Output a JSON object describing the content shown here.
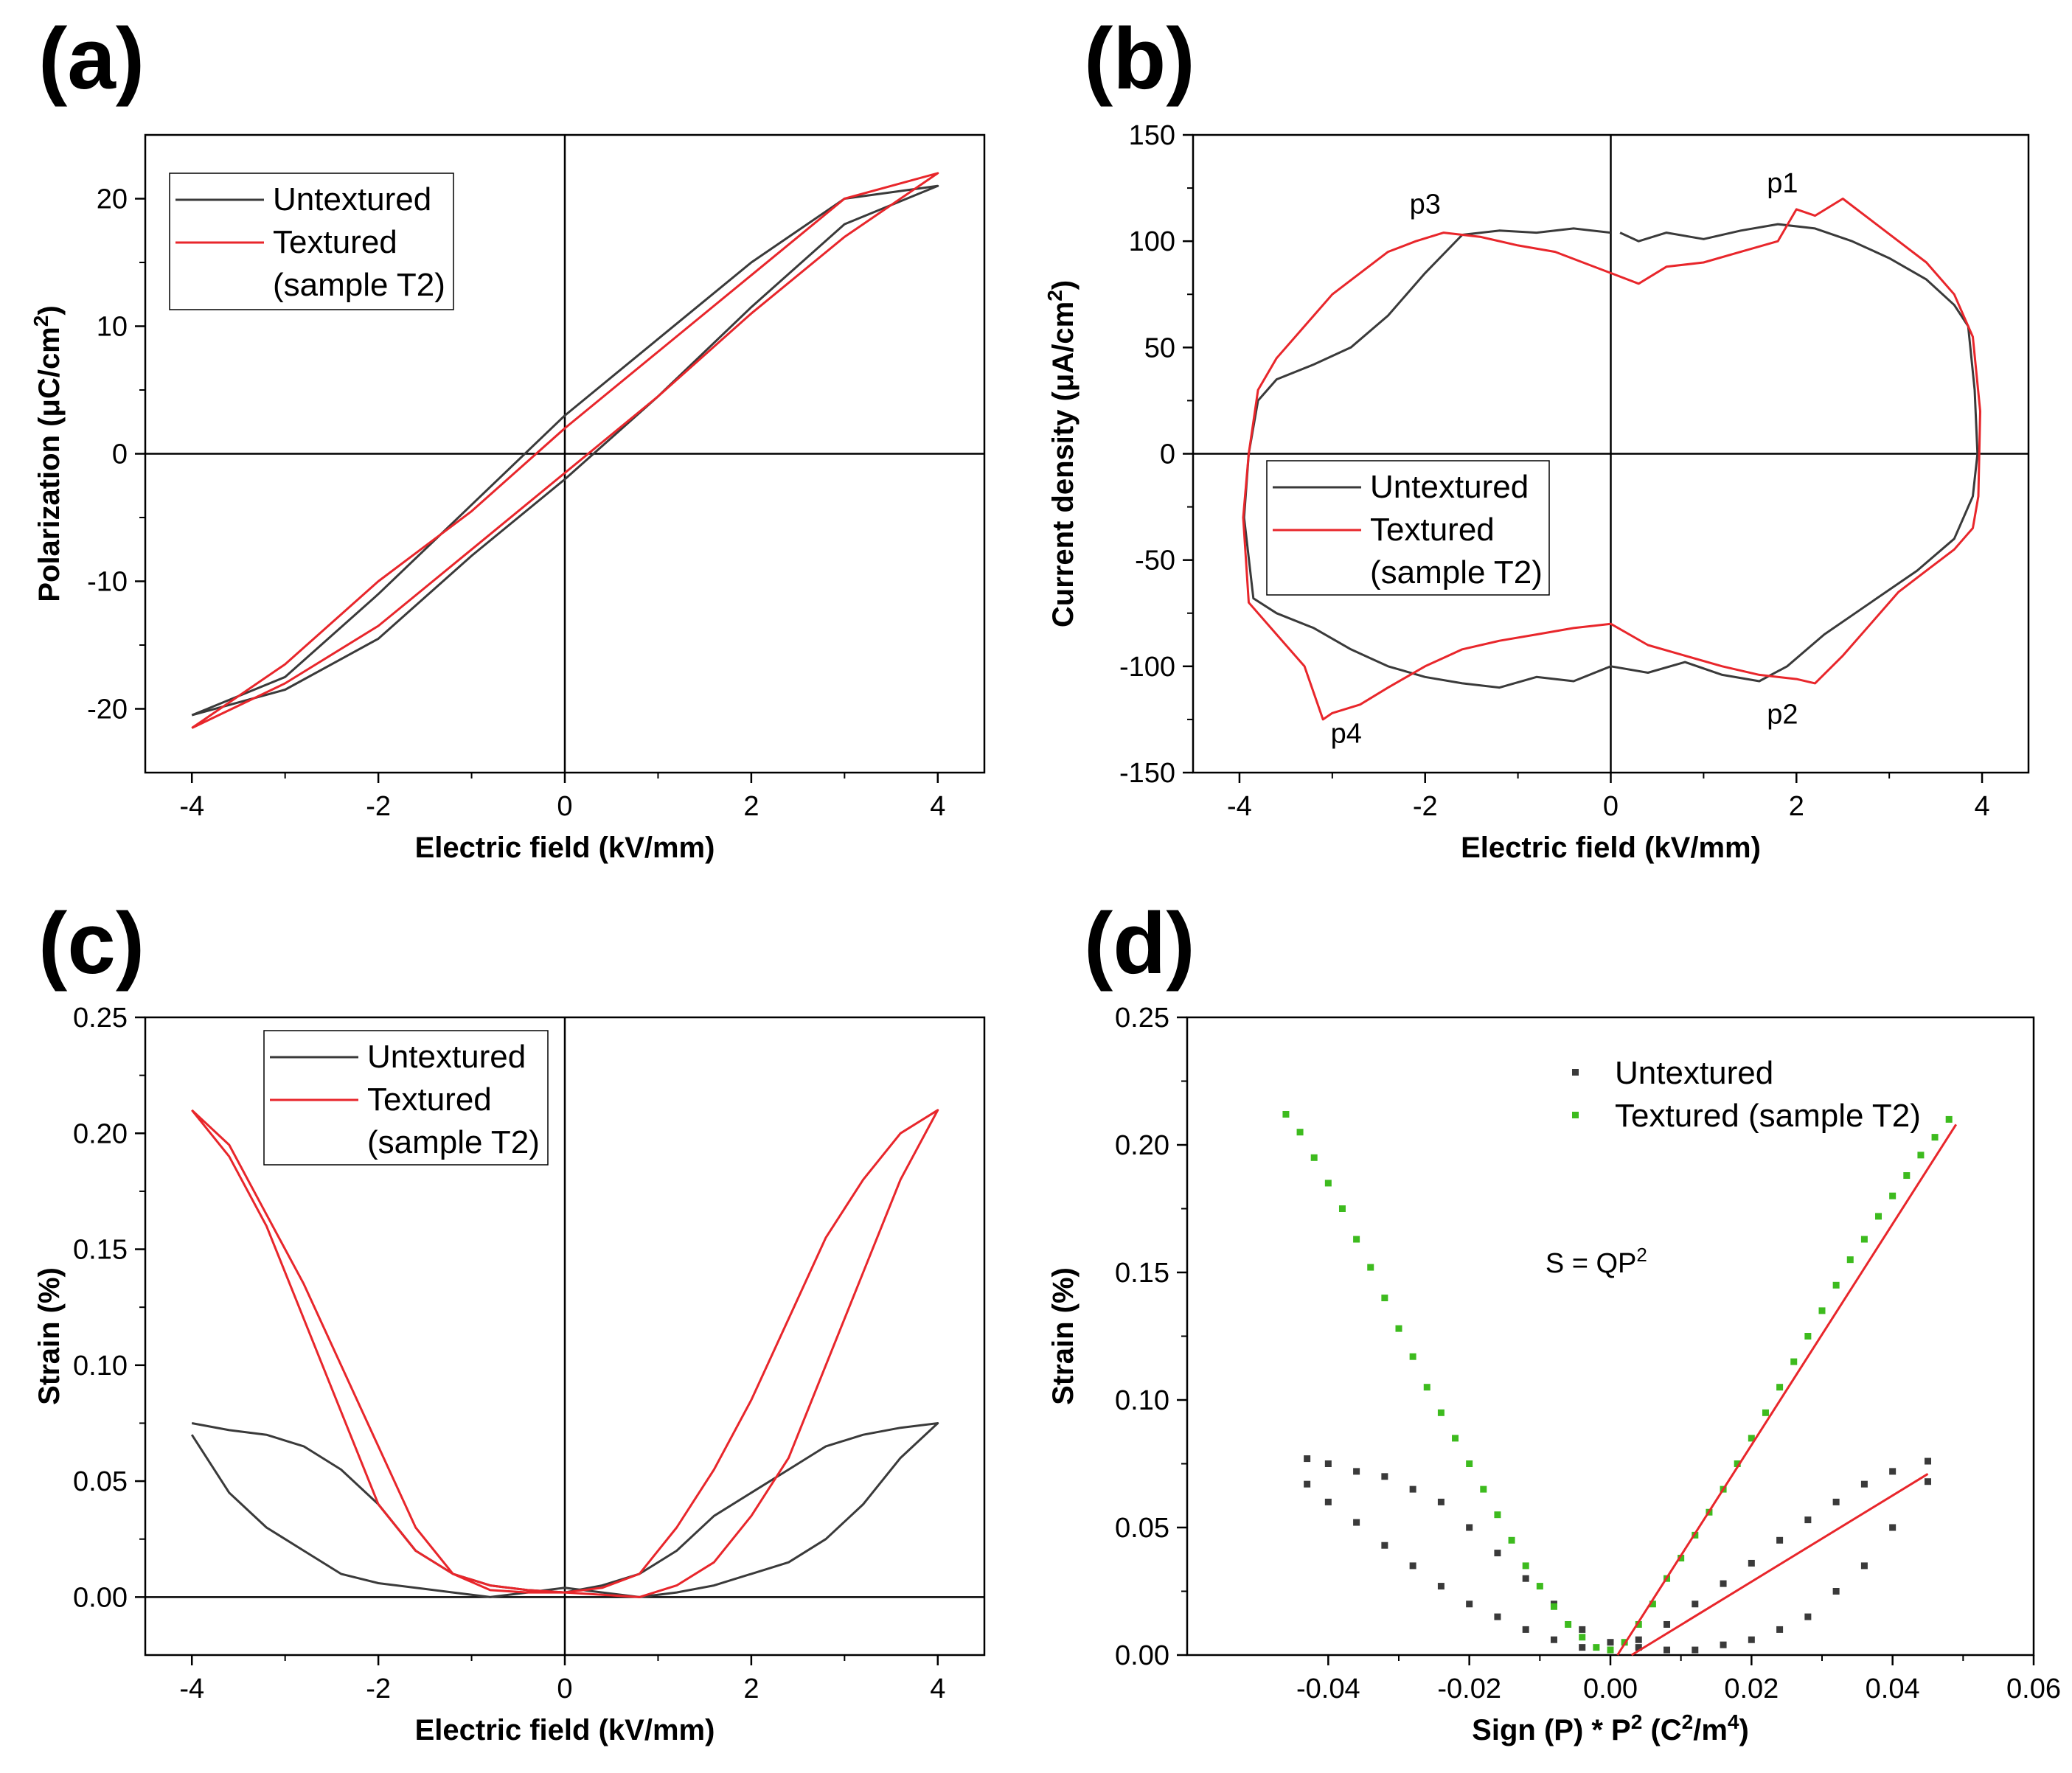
{
  "colors": {
    "untextured": "#3a3a3a",
    "textured": "#e8262b",
    "textured_scatter": "#3dbb1e",
    "fit_line": "#e8262b"
  },
  "chart_data": [
    {
      "id": "a",
      "panel": "(a)",
      "type": "line",
      "xlabel": "Electric field (kV/mm)",
      "ylabel_main": "Polarization (",
      "ylabel_unit": "μC/cm",
      "ylabel_sup": "2",
      "ylabel_close": ")",
      "xlim": [
        -4.5,
        4.5
      ],
      "ylim": [
        -25,
        25
      ],
      "xticks": [
        -4,
        -2,
        0,
        2,
        4
      ],
      "yticks": [
        -20,
        -10,
        0,
        10,
        20
      ],
      "tick_labels_x": [
        "-4",
        "-2",
        "0",
        "2",
        "4"
      ],
      "tick_labels_y": [
        "-20",
        "-10",
        "0",
        "10",
        "20"
      ],
      "legend": [
        {
          "label": "Untextured",
          "series": 0
        },
        {
          "label": "Textured",
          "series": 1
        },
        {
          "label": "(sample T2)",
          "series": -1
        }
      ],
      "series": [
        {
          "name": "Untextured",
          "x": [
            -4,
            -3,
            -2,
            -1,
            0,
            1,
            2,
            3,
            4,
            3,
            2,
            1,
            0,
            -1,
            -2,
            -3,
            -4
          ],
          "y": [
            -20.5,
            -18.5,
            -14.5,
            -8,
            -2,
            4.5,
            11.5,
            18,
            21,
            20,
            15,
            9,
            3,
            -4,
            -11,
            -17.5,
            -20.5
          ]
        },
        {
          "name": "Textured",
          "x": [
            -4,
            -3,
            -2,
            -1,
            0,
            1,
            2,
            3,
            4,
            3,
            2,
            1,
            0,
            -1,
            -2,
            -3,
            -4
          ],
          "y": [
            -21.5,
            -18,
            -13.5,
            -7.5,
            -1.5,
            4.5,
            11,
            17,
            22,
            20,
            14,
            8,
            2,
            -4.5,
            -10,
            -16.5,
            -21.5
          ]
        }
      ]
    },
    {
      "id": "b",
      "panel": "(b)",
      "type": "line",
      "xlabel": "Electric field (kV/mm)",
      "ylabel_main": "Current density (",
      "ylabel_unit": "μA/cm",
      "ylabel_sup": "2",
      "ylabel_close": ")",
      "xlim": [
        -4.5,
        4.5
      ],
      "ylim": [
        -150,
        150
      ],
      "xticks": [
        -4,
        -2,
        0,
        2,
        4
      ],
      "yticks": [
        -150,
        -100,
        -50,
        0,
        50,
        100,
        150
      ],
      "tick_labels_x": [
        "-4",
        "-2",
        "0",
        "2",
        "4"
      ],
      "tick_labels_y": [
        "-150",
        "-100",
        "-50",
        "0",
        "50",
        "100",
        "150"
      ],
      "legend": [
        {
          "label": "Untextured",
          "series": 0
        },
        {
          "label": "Textured",
          "series": 1
        },
        {
          "label": "(sample T2)",
          "series": -1
        }
      ],
      "annotations": [
        {
          "text": "p1",
          "x": 1.85,
          "y": 123
        },
        {
          "text": "p2",
          "x": 1.85,
          "y": -127
        },
        {
          "text": "p3",
          "x": -2.0,
          "y": 113
        },
        {
          "text": "p4",
          "x": -2.85,
          "y": -136
        }
      ],
      "series": [
        {
          "name": "Untextured",
          "x": [
            0.1,
            0.3,
            0.6,
            1.0,
            1.4,
            1.8,
            2.2,
            2.6,
            3.0,
            3.4,
            3.7,
            3.85,
            3.92,
            3.95,
            3.9,
            3.7,
            3.3,
            2.8,
            2.3,
            1.9,
            1.6,
            1.2,
            0.8,
            0.4,
            0.0,
            -0.4,
            -0.8,
            -1.2,
            -1.6,
            -2.0,
            -2.4,
            -2.8,
            -3.2,
            -3.6,
            -3.85,
            -3.95,
            -3.9,
            -3.8,
            -3.6,
            -3.2,
            -2.8,
            -2.4,
            -2.0,
            -1.6,
            -1.2,
            -0.8,
            -0.4,
            0.0
          ],
          "y": [
            104,
            100,
            104,
            101,
            105,
            108,
            106,
            100,
            92,
            82,
            70,
            60,
            30,
            0,
            -20,
            -40,
            -55,
            -70,
            -85,
            -100,
            -107,
            -104,
            -98,
            -103,
            -100,
            -107,
            -105,
            -110,
            -108,
            -105,
            -100,
            -92,
            -82,
            -75,
            -68,
            -30,
            0,
            25,
            35,
            42,
            50,
            65,
            85,
            103,
            105,
            104,
            106,
            104
          ]
        },
        {
          "name": "Textured",
          "x": [
            0.0,
            0.3,
            0.6,
            1.0,
            1.4,
            1.8,
            2.0,
            2.2,
            2.5,
            2.8,
            3.1,
            3.4,
            3.7,
            3.9,
            3.98,
            3.96,
            3.9,
            3.7,
            3.4,
            3.1,
            2.8,
            2.5,
            2.2,
            2.0,
            1.6,
            1.2,
            0.8,
            0.4,
            0.0,
            -0.4,
            -0.8,
            -1.2,
            -1.6,
            -2.0,
            -2.4,
            -2.7,
            -3.0,
            -3.1,
            -3.3,
            -3.6,
            -3.9,
            -3.96,
            -3.9,
            -3.8,
            -3.6,
            -3.3,
            -3.0,
            -2.7,
            -2.4,
            -2.1,
            -1.8,
            -1.4,
            -1.0,
            -0.6,
            -0.3,
            0.0
          ],
          "y": [
            85,
            80,
            88,
            90,
            95,
            100,
            115,
            112,
            120,
            110,
            100,
            90,
            75,
            55,
            20,
            -20,
            -35,
            -45,
            -55,
            -65,
            -80,
            -95,
            -108,
            -106,
            -104,
            -100,
            -95,
            -90,
            -80,
            -82,
            -85,
            -88,
            -92,
            -100,
            -110,
            -118,
            -122,
            -125,
            -100,
            -85,
            -70,
            -30,
            0,
            30,
            45,
            60,
            75,
            85,
            95,
            100,
            104,
            102,
            98,
            95,
            90,
            85
          ]
        }
      ]
    },
    {
      "id": "c",
      "panel": "(c)",
      "type": "line",
      "xlabel": "Electric field (kV/mm)",
      "ylabel_main": "Strain (%)",
      "ylabel_unit": "",
      "ylabel_sup": "",
      "ylabel_close": "",
      "xlim": [
        -4.5,
        4.5
      ],
      "ylim": [
        -0.025,
        0.25
      ],
      "xticks": [
        -4,
        -2,
        0,
        2,
        4
      ],
      "yticks": [
        0.0,
        0.05,
        0.1,
        0.15,
        0.2,
        0.25
      ],
      "tick_labels_x": [
        "-4",
        "-2",
        "0",
        "2",
        "4"
      ],
      "tick_labels_y": [
        "0.00",
        "0.05",
        "0.10",
        "0.15",
        "0.20",
        "0.25"
      ],
      "legend": [
        {
          "label": "Untextured",
          "series": 0
        },
        {
          "label": "Textured",
          "series": 1
        },
        {
          "label": "(sample T2)",
          "series": -1
        }
      ],
      "series": [
        {
          "name": "Untextured",
          "x": [
            -4,
            -3.6,
            -3.2,
            -2.8,
            -2.4,
            -2.0,
            -1.6,
            -1.2,
            -0.8,
            -0.4,
            0.0,
            0.4,
            0.8,
            1.2,
            1.6,
            2.0,
            2.4,
            2.8,
            3.2,
            3.6,
            4.0,
            3.6,
            3.2,
            2.8,
            2.4,
            2.0,
            1.6,
            1.2,
            0.8,
            0.4,
            0.0,
            -0.4,
            -0.8,
            -1.2,
            -1.6,
            -2.0,
            -2.4,
            -2.8,
            -3.2,
            -3.6,
            -4.0
          ],
          "y": [
            0.075,
            0.072,
            0.07,
            0.065,
            0.055,
            0.04,
            0.02,
            0.01,
            0.005,
            0.003,
            0.002,
            0.005,
            0.01,
            0.02,
            0.035,
            0.045,
            0.055,
            0.065,
            0.07,
            0.073,
            0.075,
            0.06,
            0.04,
            0.025,
            0.015,
            0.01,
            0.005,
            0.002,
            0.0,
            0.002,
            0.004,
            0.002,
            0.0,
            0.002,
            0.004,
            0.006,
            0.01,
            0.02,
            0.03,
            0.045,
            0.07
          ]
        },
        {
          "name": "Textured",
          "x": [
            -4,
            -3.6,
            -3.2,
            -2.8,
            -2.4,
            -2.0,
            -1.6,
            -1.2,
            -0.8,
            -0.4,
            0.0,
            0.4,
            0.8,
            1.2,
            1.6,
            2.0,
            2.4,
            2.8,
            3.2,
            3.6,
            4.0,
            3.6,
            3.2,
            2.8,
            2.4,
            2.0,
            1.6,
            1.2,
            0.8,
            0.4,
            0.0,
            -0.4,
            -0.8,
            -1.2,
            -1.6,
            -2.0,
            -2.4,
            -2.8,
            -3.2,
            -3.6,
            -4.0
          ],
          "y": [
            0.21,
            0.195,
            0.165,
            0.135,
            0.1,
            0.065,
            0.03,
            0.01,
            0.003,
            0.002,
            0.002,
            0.004,
            0.01,
            0.03,
            0.055,
            0.085,
            0.12,
            0.155,
            0.18,
            0.2,
            0.21,
            0.18,
            0.14,
            0.1,
            0.06,
            0.035,
            0.015,
            0.005,
            0.0,
            0.001,
            0.002,
            0.003,
            0.005,
            0.01,
            0.02,
            0.04,
            0.08,
            0.12,
            0.16,
            0.19,
            0.21
          ]
        }
      ]
    },
    {
      "id": "d",
      "panel": "(d)",
      "type": "scatter",
      "xlabel_main": "Sign (P) * P",
      "xlabel_sup": "2",
      "xlabel_unit": " (C",
      "xlabel_sup2": "2",
      "xlabel_unit2": "/m",
      "xlabel_sup3": "4",
      "xlabel_close": ")",
      "ylabel_main": "Strain (%)",
      "ylabel_unit": "",
      "ylabel_sup": "",
      "ylabel_close": "",
      "xlim": [
        -0.06,
        0.06
      ],
      "ylim": [
        0.0,
        0.25
      ],
      "xticks": [
        -0.04,
        -0.02,
        0.0,
        0.02,
        0.04,
        0.06
      ],
      "yticks": [
        0.0,
        0.05,
        0.1,
        0.15,
        0.2,
        0.25
      ],
      "tick_labels_x": [
        "-0.04",
        "-0.02",
        "0.00",
        "0.02",
        "0.04",
        "0.06"
      ],
      "tick_labels_y": [
        "0.00",
        "0.05",
        "0.10",
        "0.15",
        "0.20",
        "0.25"
      ],
      "formula_main": "S = QP",
      "formula_sup": "2",
      "legend": [
        {
          "label": "Untextured",
          "series": 0
        },
        {
          "label": "Textured (sample T2)",
          "series": 1
        }
      ],
      "series": [
        {
          "name": "Untextured",
          "marker": "square",
          "x": [
            -0.043,
            -0.04,
            -0.036,
            -0.032,
            -0.028,
            -0.024,
            -0.02,
            -0.016,
            -0.012,
            -0.008,
            -0.004,
            0.0,
            0.004,
            0.008,
            0.012,
            0.016,
            0.02,
            0.024,
            0.028,
            0.032,
            0.036,
            0.04,
            0.045,
            -0.043,
            -0.04,
            -0.036,
            -0.032,
            -0.028,
            -0.024,
            -0.02,
            -0.016,
            -0.012,
            -0.008,
            -0.004,
            0.0,
            0.004,
            0.008,
            0.012,
            0.016,
            0.02,
            0.024,
            0.028,
            0.032,
            0.036,
            0.04,
            0.045
          ],
          "y": [
            0.077,
            0.075,
            0.072,
            0.07,
            0.065,
            0.06,
            0.05,
            0.04,
            0.03,
            0.02,
            0.01,
            0.005,
            0.003,
            0.002,
            0.002,
            0.004,
            0.006,
            0.01,
            0.015,
            0.025,
            0.035,
            0.05,
            0.068,
            0.067,
            0.06,
            0.052,
            0.043,
            0.035,
            0.027,
            0.02,
            0.015,
            0.01,
            0.006,
            0.003,
            0.002,
            0.006,
            0.012,
            0.02,
            0.028,
            0.036,
            0.045,
            0.053,
            0.06,
            0.067,
            0.072,
            0.076
          ]
        },
        {
          "name": "Textured (sample T2)",
          "marker": "square",
          "x": [
            -0.046,
            -0.044,
            -0.042,
            -0.04,
            -0.038,
            -0.036,
            -0.034,
            -0.032,
            -0.03,
            -0.028,
            -0.026,
            -0.024,
            -0.022,
            -0.02,
            -0.018,
            -0.016,
            -0.014,
            -0.012,
            -0.01,
            -0.008,
            -0.006,
            -0.004,
            -0.002,
            0.0,
            0.002,
            0.004,
            0.006,
            0.008,
            0.01,
            0.012,
            0.014,
            0.016,
            0.018,
            0.02,
            0.022,
            0.024,
            0.026,
            0.028,
            0.03,
            0.032,
            0.034,
            0.036,
            0.038,
            0.04,
            0.042,
            0.044,
            0.046,
            0.048
          ],
          "y": [
            0.212,
            0.205,
            0.195,
            0.185,
            0.175,
            0.163,
            0.152,
            0.14,
            0.128,
            0.117,
            0.105,
            0.095,
            0.085,
            0.075,
            0.065,
            0.055,
            0.045,
            0.035,
            0.027,
            0.019,
            0.012,
            0.007,
            0.003,
            0.002,
            0.005,
            0.012,
            0.02,
            0.03,
            0.038,
            0.047,
            0.056,
            0.065,
            0.075,
            0.085,
            0.095,
            0.105,
            0.115,
            0.125,
            0.135,
            0.145,
            0.155,
            0.163,
            0.172,
            0.18,
            0.188,
            0.196,
            0.203,
            0.21
          ]
        }
      ],
      "fits": [
        {
          "name": "fit-textured",
          "x": [
            0.001,
            0.049
          ],
          "y": [
            0.0,
            0.208
          ]
        },
        {
          "name": "fit-untextured",
          "x": [
            0.003,
            0.045
          ],
          "y": [
            0.0,
            0.071
          ]
        }
      ]
    }
  ]
}
